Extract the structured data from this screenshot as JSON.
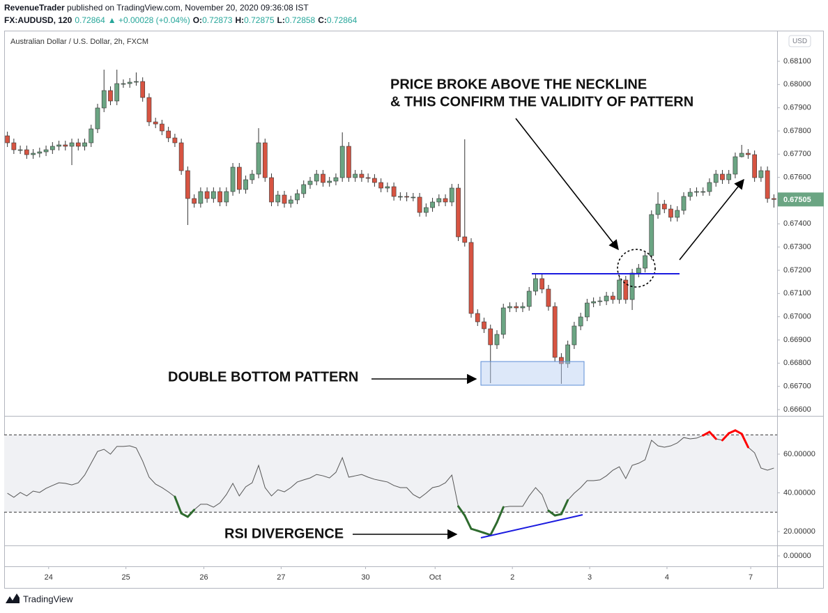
{
  "header": {
    "author": "RevenueTrader",
    "published": " published on TradingView.com, November 20, 2020 09:36:08 IST",
    "symbol": "FX:AUDUSD, 120",
    "price": "0.72864",
    "change": "▲ +0.00028 (+0.04%)",
    "ohlc": [
      {
        "label": "O:",
        "value": "0.72873"
      },
      {
        "label": "H:",
        "value": "0.72875"
      },
      {
        "label": "L:",
        "value": "0.72858"
      },
      {
        "label": "C:",
        "value": "0.72864"
      }
    ]
  },
  "chart_data": [
    {
      "type": "candlestick",
      "title": "Australian Dollar / U.S. Dollar, 2h, FXCM",
      "currency": "USD",
      "up_color": "#6ba583",
      "down_color": "#d75442",
      "annotations": [
        "PRICE BROKE ABOVE THE NECKLINE",
        "& THIS CONFIRM THE VALIDITY OF PATTERN",
        "DOUBLE BOTTOM PATTERN",
        "RSI DIVERGENCE"
      ],
      "open": [
        0.67779,
        0.67749,
        0.67719,
        0.67719,
        0.67698,
        0.67704,
        0.6771,
        0.67719,
        0.67734,
        0.6774,
        0.67734,
        0.67749,
        0.67734,
        0.67749,
        0.67809,
        0.67899,
        0.67974,
        0.67929,
        0.68004,
        0.68004,
        0.6801,
        0.68013,
        0.67944,
        0.67839,
        0.6783,
        0.678,
        0.6777,
        0.67749,
        0.67629,
        0.67509,
        0.67488,
        0.67539,
        0.67509,
        0.67539,
        0.67494,
        0.67539,
        0.67644,
        0.67548,
        0.6759,
        0.67614,
        0.67749,
        0.67599,
        0.67494,
        0.67524,
        0.67488,
        0.67503,
        0.6753,
        0.67569,
        0.67584,
        0.67614,
        0.67578,
        0.67584,
        0.67599,
        0.67734,
        0.67599,
        0.67614,
        0.67599,
        0.67596,
        0.67578,
        0.67554,
        0.6756,
        0.67518,
        0.67518,
        0.67515,
        0.67515,
        0.67449,
        0.6747,
        0.67494,
        0.67509,
        0.67494,
        0.67554,
        0.67344,
        0.6732,
        0.67014,
        0.66978,
        0.66948,
        0.66879,
        0.66924,
        0.67038,
        0.67044,
        0.67038,
        0.67044,
        0.6711,
        0.67164,
        0.67119,
        0.67044,
        0.66825,
        0.66798,
        0.66879,
        0.6696,
        0.66999,
        0.67059,
        0.67065,
        0.67068,
        0.67089,
        0.67074,
        0.67158,
        0.67074,
        0.67188,
        0.67209,
        0.67263,
        0.6744,
        0.67485,
        0.67464,
        0.67428,
        0.67458,
        0.67518,
        0.67536,
        0.67539,
        0.67539,
        0.67578,
        0.67614,
        0.6759,
        0.67614,
        0.67689,
        0.67704,
        0.67698,
        0.67599,
        0.67629,
        0.67509
      ],
      "high": [
        0.67797,
        0.67767,
        0.67737,
        0.67737,
        0.67722,
        0.67728,
        0.67737,
        0.67752,
        0.67758,
        0.67758,
        0.67767,
        0.67767,
        0.67767,
        0.67827,
        0.67917,
        0.68064,
        0.67992,
        0.68064,
        0.68022,
        0.68028,
        0.68052,
        0.68031,
        0.67962,
        0.67857,
        0.67848,
        0.67818,
        0.67788,
        0.67767,
        0.67647,
        0.67527,
        0.67557,
        0.67557,
        0.67557,
        0.67557,
        0.67557,
        0.67662,
        0.67662,
        0.67608,
        0.67632,
        0.67812,
        0.67767,
        0.67617,
        0.67542,
        0.67542,
        0.67521,
        0.67548,
        0.67587,
        0.67602,
        0.67632,
        0.67632,
        0.67602,
        0.67617,
        0.67794,
        0.67752,
        0.67632,
        0.67632,
        0.67617,
        0.67614,
        0.67596,
        0.67578,
        0.67578,
        0.67536,
        0.67536,
        0.67533,
        0.67533,
        0.67488,
        0.67512,
        0.67527,
        0.67527,
        0.67572,
        0.67572,
        0.67764,
        0.67338,
        0.67032,
        0.66996,
        0.66966,
        0.66942,
        0.67056,
        0.67062,
        0.67062,
        0.67062,
        0.67128,
        0.67182,
        0.67182,
        0.67137,
        0.67062,
        0.66843,
        0.66897,
        0.66978,
        0.67017,
        0.67077,
        0.67083,
        0.67086,
        0.67107,
        0.67107,
        0.67176,
        0.67176,
        0.67206,
        0.67227,
        0.67281,
        0.67458,
        0.67536,
        0.67503,
        0.67482,
        0.67476,
        0.67536,
        0.67554,
        0.67557,
        0.67557,
        0.67596,
        0.67632,
        0.67632,
        0.67632,
        0.67707,
        0.6774,
        0.67722,
        0.67716,
        0.67647,
        0.67647,
        0.67527
      ],
      "low": [
        0.67731,
        0.67701,
        0.67701,
        0.6768,
        0.6768,
        0.67686,
        0.67692,
        0.67701,
        0.67716,
        0.67716,
        0.67653,
        0.67716,
        0.67716,
        0.67731,
        0.67791,
        0.67881,
        0.67911,
        0.67911,
        0.67986,
        0.67986,
        0.67995,
        0.67926,
        0.67821,
        0.67812,
        0.67782,
        0.67752,
        0.67731,
        0.67611,
        0.67395,
        0.6747,
        0.6747,
        0.67491,
        0.67491,
        0.67476,
        0.67476,
        0.67521,
        0.6753,
        0.6753,
        0.67572,
        0.67596,
        0.67581,
        0.67476,
        0.67476,
        0.6747,
        0.6747,
        0.67485,
        0.67512,
        0.67551,
        0.67566,
        0.6756,
        0.6756,
        0.67566,
        0.67581,
        0.67581,
        0.67581,
        0.67581,
        0.67578,
        0.6756,
        0.67536,
        0.67536,
        0.675,
        0.675,
        0.67497,
        0.67497,
        0.67431,
        0.67431,
        0.67452,
        0.67476,
        0.67476,
        0.67476,
        0.67326,
        0.67302,
        0.66996,
        0.6696,
        0.6693,
        0.66714,
        0.66861,
        0.66906,
        0.6702,
        0.6702,
        0.6702,
        0.67026,
        0.67092,
        0.67101,
        0.67026,
        0.66807,
        0.66711,
        0.6678,
        0.66861,
        0.66942,
        0.66981,
        0.67041,
        0.67047,
        0.6705,
        0.67056,
        0.67056,
        0.67056,
        0.67029,
        0.6717,
        0.67191,
        0.67245,
        0.67422,
        0.67446,
        0.6741,
        0.6741,
        0.6744,
        0.675,
        0.67518,
        0.67521,
        0.67521,
        0.6756,
        0.67572,
        0.67572,
        0.67596,
        0.67686,
        0.6768,
        0.67581,
        0.67581,
        0.67491,
        0.6747
      ],
      "close": [
        0.67749,
        0.67719,
        0.67719,
        0.67698,
        0.67704,
        0.6771,
        0.67719,
        0.67734,
        0.6774,
        0.67734,
        0.67749,
        0.67734,
        0.67749,
        0.67809,
        0.67899,
        0.67974,
        0.67929,
        0.68004,
        0.68004,
        0.6801,
        0.68013,
        0.67944,
        0.67839,
        0.6783,
        0.678,
        0.6777,
        0.67749,
        0.67629,
        0.67509,
        0.67488,
        0.67539,
        0.67509,
        0.67539,
        0.67494,
        0.67539,
        0.67644,
        0.67548,
        0.6759,
        0.67614,
        0.67749,
        0.67599,
        0.67494,
        0.67524,
        0.67488,
        0.67503,
        0.6753,
        0.67569,
        0.67584,
        0.67614,
        0.67578,
        0.67584,
        0.67599,
        0.67734,
        0.67599,
        0.67614,
        0.67599,
        0.67596,
        0.67578,
        0.67554,
        0.6756,
        0.67518,
        0.67518,
        0.67515,
        0.67515,
        0.67449,
        0.6747,
        0.67494,
        0.67509,
        0.67494,
        0.67554,
        0.67344,
        0.6732,
        0.67014,
        0.66978,
        0.66948,
        0.66879,
        0.66924,
        0.67038,
        0.67044,
        0.67038,
        0.67044,
        0.6711,
        0.67164,
        0.67119,
        0.67044,
        0.66825,
        0.66798,
        0.66879,
        0.6696,
        0.66999,
        0.67059,
        0.67065,
        0.67068,
        0.67089,
        0.67074,
        0.67158,
        0.67074,
        0.67188,
        0.67209,
        0.67263,
        0.6744,
        0.67485,
        0.67464,
        0.67428,
        0.67458,
        0.67518,
        0.67536,
        0.67539,
        0.67539,
        0.67578,
        0.67614,
        0.6759,
        0.67614,
        0.67689,
        0.67704,
        0.67698,
        0.67599,
        0.67629,
        0.67509,
        0.67505
      ],
      "xlim": [
        -0.5,
        119.5
      ],
      "xticks": [
        {
          "value": 6.4,
          "label": "24"
        },
        {
          "value": 18.4,
          "label": "25"
        },
        {
          "value": 30.5,
          "label": "26"
        },
        {
          "value": 42.5,
          "label": "27"
        },
        {
          "value": 55.6,
          "label": "30"
        },
        {
          "value": 66.4,
          "label": "Oct"
        },
        {
          "value": 78.4,
          "label": "2"
        },
        {
          "value": 90.4,
          "label": "3"
        },
        {
          "value": 102.4,
          "label": "4"
        },
        {
          "value": 115.4,
          "label": "7"
        }
      ],
      "ylim": [
        0.66573,
        0.68232
      ],
      "yticks": [
        {
          "value": 0.666,
          "label": "0.66600"
        },
        {
          "value": 0.667,
          "label": "0.66700"
        },
        {
          "value": 0.668,
          "label": "0.66800"
        },
        {
          "value": 0.669,
          "label": "0.66900"
        },
        {
          "value": 0.67,
          "label": "0.67000"
        },
        {
          "value": 0.671,
          "label": "0.67100"
        },
        {
          "value": 0.672,
          "label": "0.67200"
        },
        {
          "value": 0.673,
          "label": "0.67300"
        },
        {
          "value": 0.674,
          "label": "0.67400"
        },
        {
          "value": 0.675,
          "label": "0.67500"
        },
        {
          "value": 0.676,
          "label": "0.67600"
        },
        {
          "value": 0.677,
          "label": "0.67700"
        },
        {
          "value": 0.678,
          "label": "0.67800"
        },
        {
          "value": 0.679,
          "label": "0.67900"
        },
        {
          "value": 0.68,
          "label": "0.68000"
        },
        {
          "value": 0.681,
          "label": "0.68100"
        }
      ],
      "grid": false
    },
    {
      "type": "line",
      "color": "#555555",
      "band_color": "#f0f1f4",
      "oversold_color": "#2e6b2e",
      "overbought_color": "#ff0000",
      "levels": [
        30,
        70
      ],
      "values": [
        39.8,
        37.7,
        40.2,
        38.4,
        40.9,
        40.2,
        42.3,
        43.8,
        45.2,
        44.9,
        44.1,
        45.2,
        49.2,
        55.3,
        61.4,
        62.5,
        60,
        64,
        64,
        64.3,
        63.2,
        56.4,
        48.1,
        44.5,
        42.7,
        40.5,
        38,
        29.4,
        27.6,
        31.2,
        34.1,
        34.1,
        32.6,
        34.8,
        39.1,
        44.9,
        38.4,
        43.1,
        45.2,
        54.2,
        42.7,
        38.4,
        41.6,
        40.5,
        42.7,
        45.6,
        46.7,
        47.7,
        49.5,
        48.8,
        47.7,
        50.6,
        58.2,
        48.1,
        48.8,
        49.5,
        48.1,
        47,
        46.3,
        45.6,
        43.8,
        42.7,
        42.7,
        39.1,
        37.3,
        39.8,
        42.7,
        43.4,
        45.2,
        49.2,
        33,
        28.3,
        21.4,
        20.4,
        19.3,
        18.2,
        24.7,
        32.6,
        33,
        33,
        33,
        38.4,
        42.7,
        39.1,
        30.8,
        28.3,
        29,
        36.2,
        39.8,
        42.7,
        46.3,
        46.3,
        46.7,
        48.8,
        51.7,
        53.5,
        47.4,
        54.2,
        55.3,
        57.1,
        67.2,
        64.3,
        63.6,
        64.3,
        65.8,
        68.6,
        67.9,
        68.3,
        69.7,
        71.5,
        67.9,
        67.2,
        70.8,
        72.3,
        70.5,
        63.6,
        60.7,
        52.8,
        51.7,
        52.8
      ],
      "ylim": [
        12.8,
        79.8
      ],
      "yticks": [
        {
          "value": 20,
          "label": "20.00000"
        },
        {
          "value": 40,
          "label": "40.00000"
        },
        {
          "value": 60,
          "label": "60.00000"
        }
      ]
    },
    {
      "type": "pane",
      "ylim": [
        -1,
        1
      ],
      "yticks": [
        {
          "value": 0,
          "label": "0.00000"
        }
      ]
    }
  ],
  "footer": {
    "brand": "TradingView"
  }
}
